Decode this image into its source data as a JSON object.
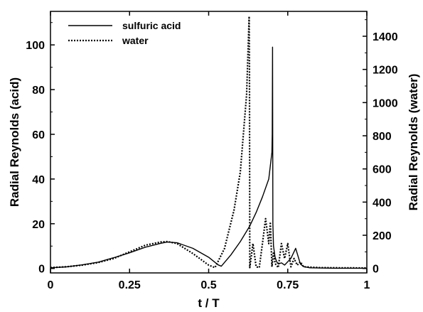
{
  "chart_data": {
    "type": "line",
    "xlabel": "t / T",
    "ylabel_left": "Radial Reynolds (acid)",
    "ylabel_right": "Radial Reynolds (water)",
    "xlim": [
      0,
      1
    ],
    "ylim_left": [
      -2,
      115
    ],
    "ylim_right": [
      -27,
      1550
    ],
    "x_ticks": [
      0,
      0.25,
      0.5,
      0.75,
      1
    ],
    "x_tick_labels": [
      "0",
      "0.25",
      "0.5",
      "0.75",
      "1"
    ],
    "y_left_ticks": [
      0,
      20,
      40,
      60,
      80,
      100
    ],
    "y_left_tick_labels": [
      "0",
      "20",
      "40",
      "60",
      "80",
      "100"
    ],
    "y_right_ticks": [
      0,
      200,
      400,
      600,
      800,
      1000,
      1200,
      1400
    ],
    "y_right_tick_labels": [
      "0",
      "200",
      "400",
      "600",
      "800",
      "1000",
      "1200",
      "1400"
    ],
    "legend": {
      "placement": "top-left"
    },
    "grid": false,
    "series": [
      {
        "name": "sulfuric acid",
        "axis": "left",
        "style": "solid",
        "color": "#000000",
        "x": [
          0,
          0.05,
          0.1,
          0.15,
          0.2,
          0.25,
          0.3,
          0.35,
          0.37,
          0.4,
          0.45,
          0.5,
          0.53,
          0.54,
          0.57,
          0.6,
          0.63,
          0.65,
          0.67,
          0.69,
          0.7,
          0.701,
          0.702,
          0.703,
          0.705,
          0.71,
          0.715,
          0.72,
          0.73,
          0.74,
          0.76,
          0.775,
          0.79,
          0.8,
          0.82,
          0.85,
          0.9,
          0.95,
          1
        ],
        "y": [
          0.3,
          0.7,
          1.6,
          2.8,
          4.8,
          7.0,
          9.5,
          11.3,
          11.8,
          11.5,
          9.0,
          5.0,
          1.6,
          1.0,
          6.0,
          12.0,
          19.0,
          25.0,
          32.0,
          40.0,
          52.0,
          60.0,
          99.0,
          20.0,
          10.0,
          5.0,
          3.0,
          2.0,
          2.5,
          1.5,
          4.5,
          9.0,
          2.0,
          0.8,
          0.3,
          0.2,
          0.1,
          0.1,
          0.1
        ]
      },
      {
        "name": "water",
        "axis": "right",
        "style": "dotted",
        "color": "#000000",
        "x": [
          0,
          0.05,
          0.1,
          0.15,
          0.2,
          0.25,
          0.3,
          0.35,
          0.37,
          0.4,
          0.45,
          0.5,
          0.52,
          0.55,
          0.58,
          0.6,
          0.62,
          0.628,
          0.629,
          0.63,
          0.64,
          0.65,
          0.66,
          0.67,
          0.68,
          0.69,
          0.695,
          0.7,
          0.705,
          0.71,
          0.72,
          0.73,
          0.74,
          0.75,
          0.76,
          0.77,
          0.78,
          0.79,
          0.8,
          0.82,
          0.85,
          0.9,
          1
        ],
        "y": [
          5,
          10,
          20,
          35,
          60,
          100,
          140,
          160,
          162,
          150,
          90,
          20,
          5,
          120,
          350,
          580,
          1050,
          1520,
          1200,
          5,
          150,
          10,
          5,
          150,
          300,
          150,
          280,
          10,
          100,
          30,
          5,
          150,
          60,
          150,
          10,
          60,
          20,
          40,
          10,
          8,
          5,
          4,
          3
        ]
      }
    ]
  }
}
